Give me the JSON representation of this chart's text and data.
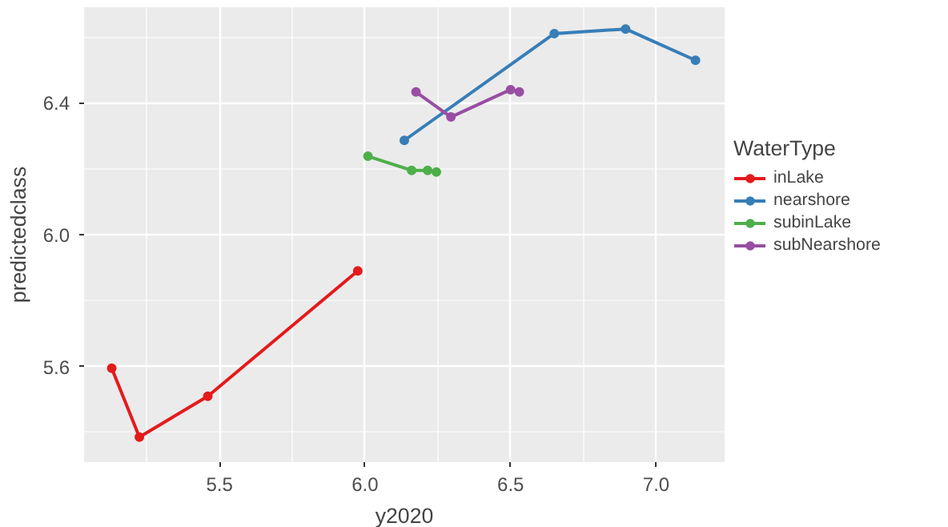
{
  "chart_data": {
    "type": "line",
    "xlabel": "y2020",
    "ylabel": "predictedclass",
    "legend_title": "WaterType",
    "legend": "right",
    "marker": "circle",
    "line_style": "solid",
    "grid": true,
    "xlim": [
      5.035,
      7.235
    ],
    "ylim": [
      5.31,
      6.69
    ],
    "xticks": [
      5.5,
      {
        "value": 6,
        "label": "6.0"
      },
      6.5,
      {
        "value": 7,
        "label": "7.0"
      }
    ],
    "yticks": [
      5.6,
      {
        "value": 6,
        "label": "6.0"
      },
      6.4
    ],
    "series": [
      {
        "name": "inLake",
        "color": "#e41a1c",
        "x": [
          5.13,
          5.225,
          5.46,
          5.975
        ],
        "values": [
          5.595,
          5.386,
          5.51,
          5.89
        ]
      },
      {
        "name": "nearshore",
        "color": "#377eb8",
        "x": [
          6.135,
          6.65,
          6.895,
          7.135
        ],
        "values": [
          6.286,
          6.61,
          6.624,
          6.529
        ]
      },
      {
        "name": "subinLake",
        "color": "#4daf4a",
        "x": [
          6.01,
          6.16,
          6.215,
          6.245
        ],
        "values": [
          6.238,
          6.195,
          6.195,
          6.19
        ]
      },
      {
        "name": "subNearshore",
        "color": "#984ea3",
        "x": [
          6.175,
          6.295,
          6.5,
          6.53
        ],
        "values": [
          6.433,
          6.357,
          6.44,
          6.433
        ]
      }
    ]
  }
}
